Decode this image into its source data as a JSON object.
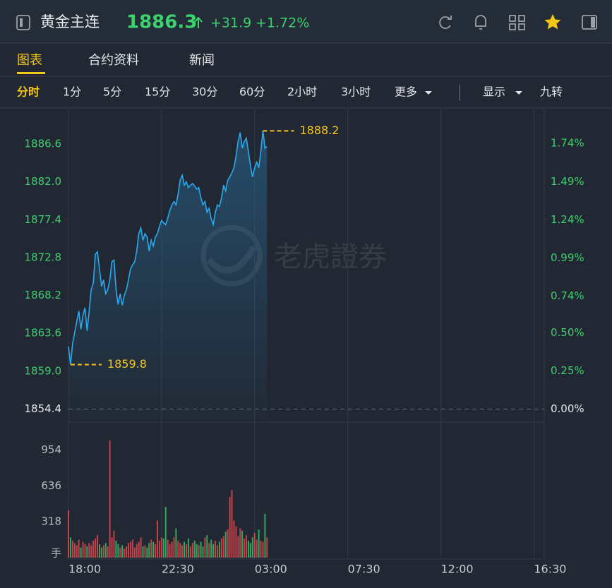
{
  "header": {
    "title": "黄金主连",
    "price": "1886.3",
    "change": "+31.9",
    "change_pct": "+1.72%"
  },
  "tabs": [
    "图表",
    "合约资料",
    "新闻"
  ],
  "periods": [
    "分时",
    "1分",
    "5分",
    "15分",
    "30分",
    "60分",
    "2小时",
    "3小时",
    "更多"
  ],
  "toolbar": [
    "显示",
    "九转"
  ],
  "watermark": "老虎證券",
  "chart_data": [
    {
      "type": "line",
      "color": "#2aa9ee",
      "area": true,
      "grid": "x",
      "tick_color": "#3ecf6e",
      "baseline": 1854.4,
      "baseline_color": "#e8e8e8",
      "x": [
        0,
        6,
        12,
        18,
        24,
        30,
        36,
        42,
        48,
        54,
        60,
        66,
        72,
        78,
        84,
        90,
        96,
        102,
        108,
        114,
        120,
        126,
        132,
        138,
        144,
        150,
        156,
        162,
        168,
        174,
        180,
        186,
        192,
        198,
        204,
        210,
        216,
        222,
        228,
        234,
        240,
        246,
        252,
        258,
        264,
        270,
        276,
        282,
        288,
        294,
        300,
        306,
        312,
        318,
        324,
        330,
        336,
        342,
        348,
        354,
        360,
        366,
        372,
        378,
        384,
        390,
        396,
        402,
        408,
        414,
        420,
        426,
        432,
        438,
        444,
        450,
        456,
        462,
        468,
        474,
        480,
        486,
        492,
        498,
        504,
        510,
        516,
        522,
        528,
        534,
        540,
        546,
        552,
        558,
        564,
        570,
        576
      ],
      "values": [
        1862.0,
        1859.8,
        1862.4,
        1863.7,
        1865.0,
        1866.3,
        1864.1,
        1865.8,
        1866.7,
        1863.9,
        1866.3,
        1868.9,
        1869.7,
        1873.2,
        1873.5,
        1871.4,
        1869.3,
        1870.1,
        1868.4,
        1868.9,
        1870.1,
        1872.3,
        1872.5,
        1868.9,
        1867.1,
        1868.4,
        1867.0,
        1868.2,
        1868.9,
        1870.1,
        1871.4,
        1871.9,
        1872.3,
        1873.6,
        1875.7,
        1876.4,
        1874.9,
        1875.7,
        1875.3,
        1873.6,
        1874.9,
        1874.2,
        1875.3,
        1875.7,
        1876.6,
        1877.3,
        1877.0,
        1876.8,
        1877.6,
        1878.5,
        1879.2,
        1879.6,
        1879.2,
        1880.5,
        1882.2,
        1882.8,
        1881.6,
        1882.0,
        1881.3,
        1881.6,
        1881.8,
        1881.5,
        1881.1,
        1881.3,
        1880.1,
        1879.2,
        1879.6,
        1878.3,
        1878.8,
        1877.5,
        1876.8,
        1878.3,
        1879.2,
        1879.0,
        1880.1,
        1881.6,
        1880.9,
        1882.2,
        1882.6,
        1883.1,
        1883.7,
        1885.1,
        1886.9,
        1888.0,
        1886.1,
        1886.9,
        1887.3,
        1885.7,
        1883.9,
        1882.6,
        1883.7,
        1884.4,
        1883.7,
        1885.7,
        1888.2,
        1886.1,
        1886.3
      ],
      "markers": [
        {
          "x": 564,
          "value": 1888.2
        },
        {
          "x": 6,
          "value": 1859.8
        }
      ],
      "marker_color": "#f5c518",
      "xlim": [
        0,
        1380
      ],
      "xticks": [
        {
          "value": 0,
          "label": "18:00"
        },
        {
          "value": 270,
          "label": "22:30"
        },
        {
          "value": 540,
          "label": "03:00"
        },
        {
          "value": 810,
          "label": "07:30"
        },
        {
          "value": 1080,
          "label": "12:00"
        },
        {
          "value": 1350,
          "label": "16:30"
        }
      ],
      "ylim": [
        1852.9,
        1890.8
      ],
      "yticks": [
        1854.4,
        {
          "value": 1859,
          "label": "1859.0"
        },
        1863.6,
        1868.2,
        1872.8,
        1877.4,
        {
          "value": 1882,
          "label": "1882.0"
        },
        1886.6
      ],
      "y2lim": [
        -0.081,
        1.963
      ],
      "y2ticks": [
        {
          "value": 0,
          "label": "0.00%"
        },
        {
          "value": 0.25,
          "label": "0.25%"
        },
        {
          "value": 0.5,
          "label": "0.50%"
        },
        {
          "value": 0.74,
          "label": "0.74%"
        },
        {
          "value": 0.99,
          "label": "0.99%"
        },
        {
          "value": 1.24,
          "label": "1.24%"
        },
        {
          "value": 1.49,
          "label": "1.49%"
        },
        {
          "value": 1.74,
          "label": "1.74%"
        }
      ]
    },
    {
      "type": "bar",
      "up_color": "#e0454e",
      "down_color": "#2fbf63",
      "tick_color": "#b8bcc4",
      "values": [
        420,
        180,
        150,
        130,
        110,
        160,
        90,
        140,
        120,
        100,
        130,
        110,
        150,
        170,
        200,
        120,
        90,
        110,
        130,
        100,
        1040,
        180,
        240,
        150,
        120,
        90,
        110,
        80,
        100,
        130,
        140,
        160,
        90,
        120,
        140,
        180,
        100,
        110,
        90,
        130,
        160,
        140,
        120,
        330,
        150,
        180,
        170,
        450,
        160,
        120,
        140,
        180,
        260,
        150,
        130,
        110,
        140,
        120,
        170,
        100,
        130,
        150,
        120,
        110,
        140,
        100,
        180,
        200,
        130,
        160,
        120,
        150,
        110,
        140,
        170,
        190,
        230,
        250,
        540,
        600,
        330,
        280,
        190,
        260,
        240,
        170,
        200,
        150,
        130,
        180,
        220,
        160,
        250,
        150,
        140,
        390,
        180
      ],
      "ylim": [
        0,
        1190
      ],
      "yticks": [
        {
          "value": 0,
          "label": "手"
        },
        318,
        636,
        954
      ]
    }
  ]
}
